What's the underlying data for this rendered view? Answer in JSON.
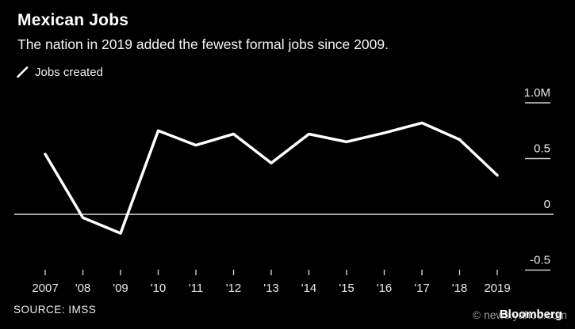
{
  "header": {
    "title": "Mexican Jobs",
    "subtitle": "The nation in 2019 added the fewest formal jobs since 2009."
  },
  "legend": {
    "label": "Jobs created"
  },
  "source": {
    "text": "SOURCE: IMSS"
  },
  "watermark": {
    "site": "© news.yahoo.com",
    "brand": "Bloomberg"
  },
  "colors": {
    "background": "#000000",
    "line": "#ffffff",
    "axis_label": "#e8e8e8",
    "tick": "#cfcfcf",
    "zero_line": "#dedede",
    "watermark_gray": "#9b9b9b"
  },
  "chart_data": {
    "type": "line",
    "title": "Mexican Jobs",
    "subtitle": "The nation in 2019 added the fewest formal jobs since 2009.",
    "categories": [
      "2007",
      "'08",
      "'09",
      "'10",
      "'11",
      "'12",
      "'13",
      "'14",
      "'15",
      "'16",
      "'17",
      "'18",
      "2019"
    ],
    "years": [
      2007,
      2008,
      2009,
      2010,
      2011,
      2012,
      2013,
      2014,
      2015,
      2016,
      2017,
      2018,
      2019
    ],
    "series": [
      {
        "name": "Jobs created",
        "values": [
          0.54,
          -0.03,
          -0.17,
          0.75,
          0.62,
          0.72,
          0.46,
          0.72,
          0.65,
          0.73,
          0.82,
          0.67,
          0.35
        ]
      }
    ],
    "value_unit": "millions (M)",
    "y_ticks": [
      {
        "label": "1.0M",
        "value": 1.0
      },
      {
        "label": "0.5",
        "value": 0.5
      },
      {
        "label": "0",
        "value": 0
      },
      {
        "label": "-0.5",
        "value": -0.5
      }
    ],
    "ylim": [
      -0.6,
      1.1
    ],
    "grid": "zero-line-only",
    "legend_position": "top-left",
    "y_axis_side": "right",
    "source": "SOURCE: IMSS"
  }
}
